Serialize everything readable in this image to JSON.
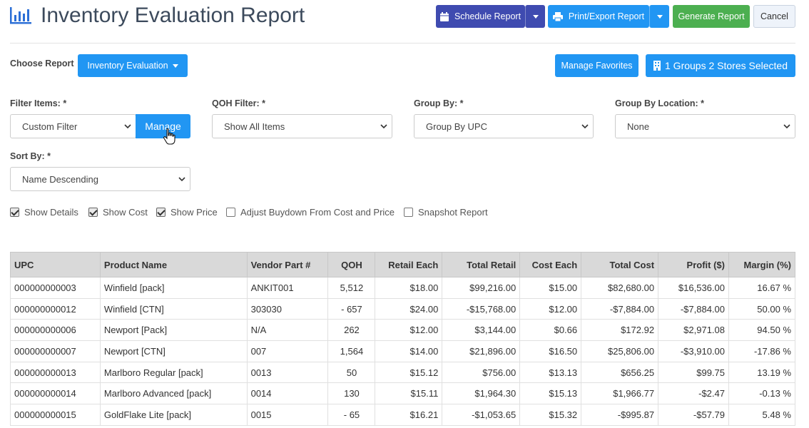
{
  "header": {
    "title": "Inventory Evaluation Report",
    "schedule_label": "Schedule Report",
    "print_label": "Print/Export Report",
    "generate_label": "Generate Report",
    "cancel_label": "Cancel"
  },
  "choose": {
    "label": "Choose Report",
    "report_label": "Inventory Evaluation",
    "favorites_label": "Manage Favorites",
    "groups_label": "1 Groups 2 Stores Selected"
  },
  "filters": {
    "filter_items_label": "Filter Items: *",
    "filter_items_value": "Custom Filter",
    "manage_label": "Manage",
    "qoh_label": "QOH Filter: *",
    "qoh_value": "Show All Items",
    "group_by_label": "Group By: *",
    "group_by_value": "Group By UPC",
    "group_loc_label": "Group By Location: *",
    "group_loc_value": "None",
    "sort_label": "Sort By: *",
    "sort_value": "Name Descending"
  },
  "options": [
    {
      "label": "Show Details",
      "checked": true
    },
    {
      "label": "Show Cost",
      "checked": true
    },
    {
      "label": "Show Price",
      "checked": true
    },
    {
      "label": "Adjust Buydown From Cost and Price",
      "checked": false
    },
    {
      "label": "Snapshot Report",
      "checked": false
    }
  ],
  "table": {
    "columns": [
      "UPC",
      "Product Name",
      "Vendor Part #",
      "QOH",
      "Retail Each",
      "Total Retail",
      "Cost Each",
      "Total Cost",
      "Profit ($)",
      "Margin (%)"
    ],
    "rows": [
      [
        "000000000003",
        "Winfield [pack]",
        "ANKIT001",
        "5,512",
        "$18.00",
        "$99,216.00",
        "$15.00",
        "$82,680.00",
        "$16,536.00",
        "16.67 %"
      ],
      [
        "000000000012",
        "Winfield [CTN]",
        "303030",
        "- 657",
        "$24.00",
        "-$15,768.00",
        "$12.00",
        "-$7,884.00",
        "-$7,884.00",
        "50.00 %"
      ],
      [
        "000000000006",
        "Newport [Pack]",
        "N/A",
        "262",
        "$12.00",
        "$3,144.00",
        "$0.66",
        "$172.92",
        "$2,971.08",
        "94.50 %"
      ],
      [
        "000000000007",
        "Newport [CTN]",
        "007",
        "1,564",
        "$14.00",
        "$21,896.00",
        "$16.50",
        "$25,806.00",
        "-$3,910.00",
        "-17.86 %"
      ],
      [
        "000000000013",
        "Marlboro Regular [pack]",
        "0013",
        "50",
        "$15.12",
        "$756.00",
        "$13.13",
        "$656.25",
        "$99.75",
        "13.19 %"
      ],
      [
        "000000000014",
        "Marlboro Advanced [pack]",
        "0014",
        "130",
        "$15.11",
        "$1,964.30",
        "$15.13",
        "$1,966.77",
        "-$2.47",
        "-0.13 %"
      ],
      [
        "000000000015",
        "GoldFlake Lite [pack]",
        "0015",
        "- 65",
        "$16.21",
        "-$1,053.65",
        "$15.32",
        "-$995.87",
        "-$57.79",
        "5.48 %"
      ]
    ]
  },
  "colors": {
    "indigo": "#3f4bb0",
    "blue": "#2196f3",
    "green": "#4caf50",
    "negative": "#e53935",
    "header_row": "#d9d9d9"
  },
  "icons": [
    "bar-chart-icon",
    "calendar-icon",
    "printer-icon",
    "caret-down-icon",
    "building-icon",
    "chevron-down-icon",
    "hand-cursor-icon",
    "check-icon"
  ]
}
